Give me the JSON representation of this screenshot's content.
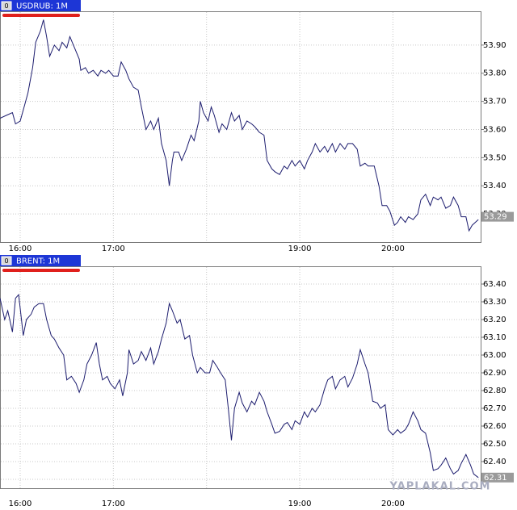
{
  "watermark": "YAPLAKAL.COM",
  "chart_data": [
    {
      "type": "line",
      "title": "USDRUB: 1M",
      "badge": "0",
      "color": "#1c1c6e",
      "grid": true,
      "last_value": 53.29,
      "xlim": [
        "15:47",
        "20:57"
      ],
      "xticks": [
        "16:00",
        "17:00",
        {
          "value": "18:00",
          "label": null
        },
        "19:00",
        "20:00"
      ],
      "ylim": [
        53.2,
        54.02
      ],
      "yticks": [
        {
          "value": 53.3,
          "label": "53.30"
        },
        {
          "value": 53.4,
          "label": "53.40"
        },
        {
          "value": 53.5,
          "label": "53.50"
        },
        {
          "value": 53.6,
          "label": "53.60"
        },
        {
          "value": 53.7,
          "label": "53.70"
        },
        {
          "value": 53.8,
          "label": "53.80"
        },
        {
          "value": 53.9,
          "label": "53.90"
        }
      ],
      "x": [
        "15:47",
        "15:51",
        "15:55",
        "15:57",
        "16:00",
        "16:03",
        "16:05",
        "16:08",
        "16:10",
        "16:13",
        "16:15",
        "16:17",
        "16:19",
        "16:22",
        "16:25",
        "16:27",
        "16:30",
        "16:32",
        "16:35",
        "16:38",
        "16:39",
        "16:42",
        "16:44",
        "16:47",
        "16:50",
        "16:52",
        "16:55",
        "16:57",
        "17:00",
        "17:03",
        "17:05",
        "17:08",
        "17:10",
        "17:13",
        "17:16",
        "17:18",
        "17:21",
        "17:24",
        "17:26",
        "17:29",
        "17:31",
        "17:34",
        "17:36",
        "17:38",
        "17:39",
        "17:42",
        "17:44",
        "17:47",
        "17:50",
        "17:52",
        "17:55",
        "17:56",
        "17:58",
        "18:01",
        "18:03",
        "18:05",
        "18:08",
        "18:10",
        "18:13",
        "18:16",
        "18:18",
        "18:21",
        "18:23",
        "18:26",
        "18:29",
        "18:31",
        "18:34",
        "18:37",
        "18:39",
        "18:42",
        "18:44",
        "18:47",
        "18:50",
        "18:52",
        "18:55",
        "18:57",
        "19:00",
        "19:03",
        "19:05",
        "19:08",
        "19:10",
        "19:13",
        "19:16",
        "19:18",
        "19:21",
        "19:23",
        "19:26",
        "19:29",
        "19:31",
        "19:34",
        "19:37",
        "19:39",
        "19:42",
        "19:44",
        "19:48",
        "19:51",
        "19:53",
        "19:56",
        "19:58",
        "20:01",
        "20:03",
        "20:05",
        "20:08",
        "20:10",
        "20:13",
        "20:16",
        "20:18",
        "20:21",
        "20:24",
        "20:26",
        "20:29",
        "20:31",
        "20:34",
        "20:37",
        "20:39",
        "20:42",
        "20:44",
        "20:47",
        "20:49",
        "20:51",
        "20:53",
        "20:55"
      ],
      "values": [
        53.64,
        53.65,
        53.66,
        53.62,
        53.63,
        53.69,
        53.73,
        53.82,
        53.91,
        53.95,
        53.99,
        53.93,
        53.86,
        53.9,
        53.88,
        53.91,
        53.89,
        53.93,
        53.89,
        53.85,
        53.81,
        53.82,
        53.8,
        53.81,
        53.79,
        53.81,
        53.8,
        53.81,
        53.79,
        53.79,
        53.84,
        53.81,
        53.78,
        53.75,
        53.74,
        53.68,
        53.6,
        53.63,
        53.6,
        53.64,
        53.55,
        53.49,
        53.4,
        53.49,
        53.52,
        53.52,
        53.49,
        53.53,
        53.58,
        53.56,
        53.63,
        53.7,
        53.66,
        53.63,
        53.68,
        53.65,
        53.59,
        53.62,
        53.6,
        53.66,
        53.63,
        53.65,
        53.6,
        53.63,
        53.62,
        53.61,
        53.59,
        53.58,
        53.49,
        53.46,
        53.45,
        53.44,
        53.47,
        53.46,
        53.49,
        53.47,
        53.49,
        53.46,
        53.49,
        53.52,
        53.55,
        53.52,
        53.54,
        53.52,
        53.55,
        53.52,
        53.55,
        53.53,
        53.55,
        53.55,
        53.53,
        53.47,
        53.48,
        53.47,
        53.47,
        53.4,
        53.33,
        53.33,
        53.31,
        53.26,
        53.27,
        53.29,
        53.27,
        53.29,
        53.28,
        53.3,
        53.35,
        53.37,
        53.33,
        53.36,
        53.35,
        53.36,
        53.32,
        53.33,
        53.36,
        53.33,
        53.29,
        53.29,
        53.24,
        53.26,
        53.27,
        53.28
      ]
    },
    {
      "type": "line",
      "title": "BRENT: 1M",
      "badge": "0",
      "color": "#1c1c6e",
      "grid": true,
      "last_value": 62.31,
      "xlim": [
        "15:47",
        "20:57"
      ],
      "xticks": [
        "16:00",
        "17:00",
        {
          "value": "18:00",
          "label": null
        },
        "19:00",
        "20:00"
      ],
      "ylim": [
        62.25,
        63.5
      ],
      "yticks": [
        {
          "value": 62.3,
          "label": "62.30"
        },
        {
          "value": 62.4,
          "label": "62.40"
        },
        {
          "value": 62.5,
          "label": "62.50"
        },
        {
          "value": 62.6,
          "label": "62.60"
        },
        {
          "value": 62.7,
          "label": "62.70"
        },
        {
          "value": 62.8,
          "label": "62.80"
        },
        {
          "value": 62.9,
          "label": "62.90"
        },
        {
          "value": 63,
          "label": "63.00"
        },
        {
          "value": 63.1,
          "label": "63.10"
        },
        {
          "value": 63.2,
          "label": "63.20"
        },
        {
          "value": 63.3,
          "label": "63.30"
        },
        {
          "value": 63.4,
          "label": "63.40"
        }
      ],
      "x": [
        "15:47",
        "15:50",
        "15:52",
        "15:55",
        "15:57",
        "15:59",
        "16:02",
        "16:04",
        "16:07",
        "16:09",
        "16:12",
        "16:15",
        "16:17",
        "16:20",
        "16:22",
        "16:25",
        "16:28",
        "16:30",
        "16:33",
        "16:36",
        "16:38",
        "16:41",
        "16:43",
        "16:46",
        "16:49",
        "16:51",
        "16:53",
        "16:56",
        "16:58",
        "17:01",
        "17:04",
        "17:06",
        "17:09",
        "17:10",
        "17:13",
        "17:16",
        "17:18",
        "17:21",
        "17:24",
        "17:26",
        "17:29",
        "17:31",
        "17:34",
        "17:36",
        "17:38",
        "17:41",
        "17:43",
        "17:46",
        "17:49",
        "17:51",
        "17:54",
        "17:56",
        "17:59",
        "18:02",
        "18:04",
        "18:07",
        "18:09",
        "18:12",
        "18:14",
        "18:16",
        "18:18",
        "18:21",
        "18:23",
        "18:26",
        "18:29",
        "18:31",
        "18:34",
        "18:37",
        "18:39",
        "18:42",
        "18:44",
        "18:47",
        "18:50",
        "18:52",
        "18:55",
        "18:57",
        "19:00",
        "19:03",
        "19:05",
        "19:08",
        "19:10",
        "19:13",
        "19:16",
        "19:18",
        "19:21",
        "19:23",
        "19:26",
        "19:29",
        "19:31",
        "19:34",
        "19:37",
        "19:39",
        "19:42",
        "19:44",
        "19:47",
        "19:50",
        "19:52",
        "19:55",
        "19:57",
        "20:00",
        "20:03",
        "20:05",
        "20:08",
        "20:10",
        "20:13",
        "20:16",
        "20:18",
        "20:21",
        "20:24",
        "20:26",
        "20:29",
        "20:31",
        "20:34",
        "20:37",
        "20:39",
        "20:42",
        "20:44",
        "20:47",
        "20:50",
        "20:52",
        "20:55"
      ],
      "values": [
        63.32,
        63.2,
        63.25,
        63.13,
        63.32,
        63.34,
        63.11,
        63.2,
        63.23,
        63.27,
        63.29,
        63.29,
        63.2,
        63.11,
        63.09,
        63.04,
        63.0,
        62.86,
        62.88,
        62.84,
        62.79,
        62.86,
        62.95,
        63.0,
        63.07,
        62.95,
        62.86,
        62.88,
        62.84,
        62.81,
        62.86,
        62.77,
        62.9,
        63.03,
        62.95,
        62.97,
        63.02,
        62.97,
        63.04,
        62.95,
        63.02,
        63.09,
        63.18,
        63.29,
        63.25,
        63.18,
        63.2,
        63.09,
        63.11,
        63.0,
        62.9,
        62.93,
        62.9,
        62.9,
        62.97,
        62.93,
        62.9,
        62.86,
        62.7,
        62.52,
        62.7,
        62.79,
        62.73,
        62.68,
        62.74,
        62.72,
        62.79,
        62.74,
        62.68,
        62.61,
        62.56,
        62.57,
        62.61,
        62.62,
        62.58,
        62.63,
        62.61,
        62.68,
        62.65,
        62.7,
        62.68,
        62.72,
        62.81,
        62.86,
        62.88,
        62.81,
        62.86,
        62.88,
        62.82,
        62.87,
        62.95,
        63.03,
        62.95,
        62.9,
        62.74,
        62.73,
        62.7,
        62.72,
        62.58,
        62.55,
        62.58,
        62.56,
        62.58,
        62.61,
        62.68,
        62.63,
        62.58,
        62.56,
        62.45,
        62.35,
        62.36,
        62.38,
        62.42,
        62.36,
        62.33,
        62.35,
        62.39,
        62.44,
        62.38,
        62.33,
        62.31
      ]
    }
  ]
}
